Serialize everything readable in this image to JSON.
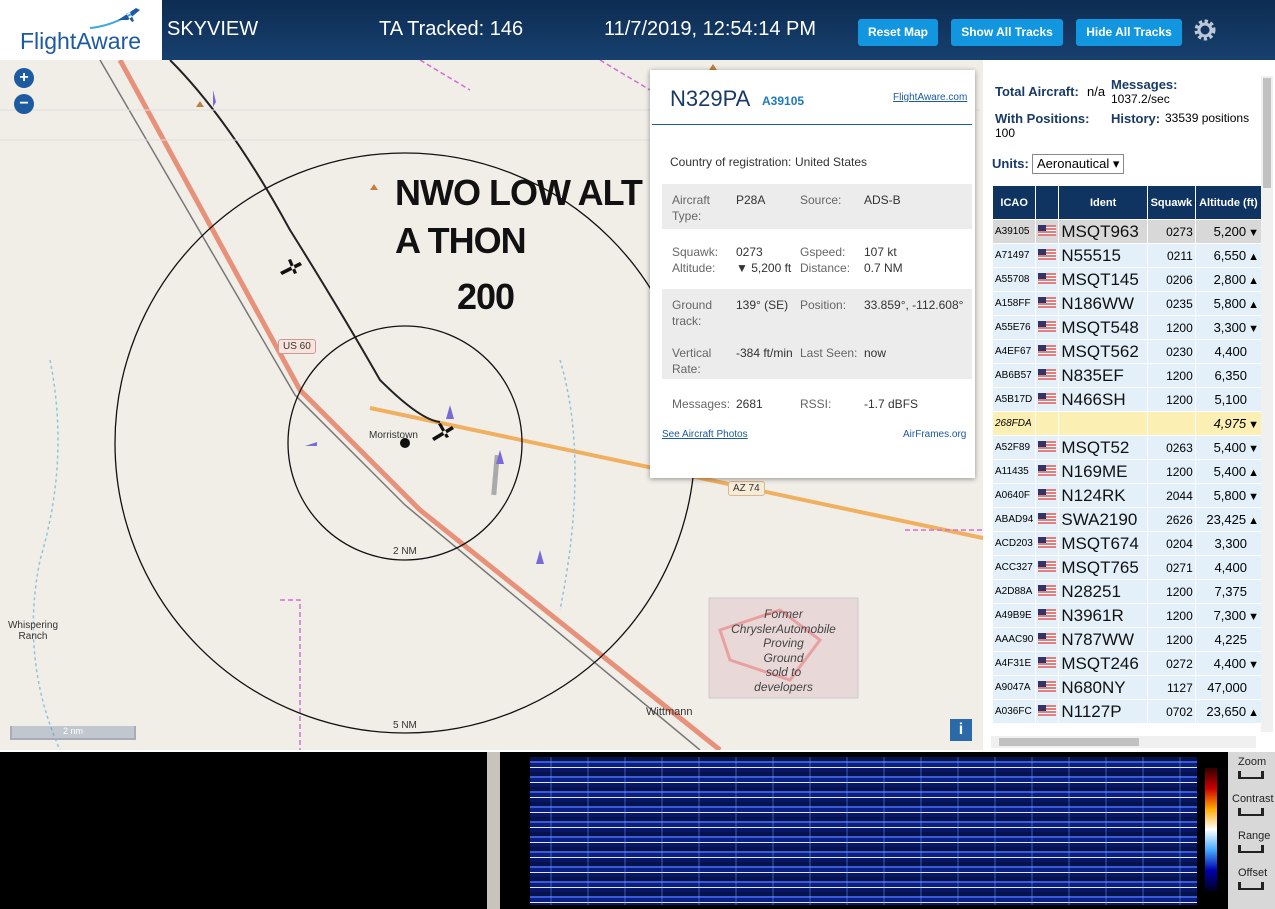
{
  "header": {
    "logo": "FlightAware",
    "app_name": "SKYVIEW",
    "tracked": "TA Tracked: 146",
    "datetime": "11/7/2019, 12:54:14 PM",
    "buttons": [
      "Reset Map",
      "Show All Tracks",
      "Hide All Tracks"
    ]
  },
  "map": {
    "zoom_in": "+",
    "zoom_out": "−",
    "overlay_lines": [
      "NWO LOW ALT",
      "A THON",
      "200"
    ],
    "labels": {
      "us60": "US 60",
      "town": "Morristown",
      "az74": "AZ 74",
      "ring_inner": "2 NM",
      "ring_outer": "5 NM",
      "whispering": "Whispering Ranch",
      "wittmann": "Wittmann",
      "scale": "2 nm",
      "info": "i"
    },
    "proving_ground": [
      "Former",
      "ChryslerAutomobile",
      "Proving",
      "Ground",
      "sold to",
      "developers"
    ]
  },
  "popup": {
    "ident": "N329PA",
    "icao": "A39105",
    "link": "FlightAware.com",
    "country_label": "Country of registration:",
    "country": "United States",
    "sections": [
      [
        [
          "Aircraft Type:",
          "P28A",
          "Source:",
          "ADS-B"
        ]
      ],
      [
        [
          "Squawk:",
          "0273",
          "Gspeed:",
          "107 kt"
        ],
        [
          "Altitude:",
          "▼ 5,200 ft",
          "Distance:",
          "0.7 NM"
        ]
      ],
      [
        [
          "Ground track:",
          "139° (SE)",
          "Position:",
          "33.859°, -112.608°"
        ],
        [
          "Vertical Rate:",
          "-384 ft/min",
          "Last Seen:",
          "now"
        ]
      ],
      [
        [
          "Messages:",
          "2681",
          "RSSI:",
          "-1.7 dBFS"
        ]
      ]
    ],
    "photos": "See Aircraft Photos",
    "airframes": "AirFrames.org"
  },
  "sidebar": {
    "total_label": "Total Aircraft:",
    "total": "n/a",
    "messages_label": "Messages:",
    "messages": "1037.2/sec",
    "positions_label": "With Positions:",
    "positions": "100",
    "history_label": "History:",
    "history": "33539 positions",
    "units_label": "Units:",
    "units": "Aeronautical",
    "table": {
      "headers": [
        "ICAO",
        "Ident",
        "Squawk",
        "Altitude (ft)"
      ],
      "rows": [
        {
          "icao": "A39105",
          "ident": "MSQT963",
          "squawk": "0273",
          "altitude": "5,200",
          "trend": "▼"
        },
        {
          "icao": "A71497",
          "ident": "N55515",
          "squawk": "0211",
          "altitude": "6,550",
          "trend": "▲"
        },
        {
          "icao": "A55708",
          "ident": "MSQT145",
          "squawk": "0206",
          "altitude": "2,800",
          "trend": "▲"
        },
        {
          "icao": "A158FF",
          "ident": "N186WW",
          "squawk": "0235",
          "altitude": "5,800",
          "trend": "▲"
        },
        {
          "icao": "A55E76",
          "ident": "MSQT548",
          "squawk": "1200",
          "altitude": "3,300",
          "trend": "▼"
        },
        {
          "icao": "A4EF67",
          "ident": "MSQT562",
          "squawk": "0230",
          "altitude": "4,400"
        },
        {
          "icao": "AB6B57",
          "ident": "N835EF",
          "squawk": "1200",
          "altitude": "6,350"
        },
        {
          "icao": "A5B17D",
          "ident": "N466SH",
          "squawk": "1200",
          "altitude": "5,100"
        },
        {
          "icao": "268FDA",
          "altitude": "4,975",
          "trend": "▼"
        },
        {
          "icao": "A52F89",
          "ident": "MSQT52",
          "squawk": "0263",
          "altitude": "5,400",
          "trend": "▼"
        },
        {
          "icao": "A11435",
          "ident": "N169ME",
          "squawk": "1200",
          "altitude": "5,400",
          "trend": "▲"
        },
        {
          "icao": "A0640F",
          "ident": "N124RK",
          "squawk": "2044",
          "altitude": "5,800",
          "trend": "▼"
        },
        {
          "icao": "ABAD94",
          "ident": "SWA2190",
          "squawk": "2626",
          "altitude": "23,425",
          "trend": "▲"
        },
        {
          "icao": "ACD203",
          "ident": "MSQT674",
          "squawk": "0204",
          "altitude": "3,300"
        },
        {
          "icao": "ACC327",
          "ident": "MSQT765",
          "squawk": "0271",
          "altitude": "4,400"
        },
        {
          "icao": "A2D88A",
          "ident": "N28251",
          "squawk": "1200",
          "altitude": "7,375"
        },
        {
          "icao": "A49B9E",
          "ident": "N3961R",
          "squawk": "1200",
          "altitude": "7,300",
          "trend": "▼"
        },
        {
          "icao": "AAAC90",
          "ident": "N787WW",
          "squawk": "1200",
          "altitude": "4,225"
        },
        {
          "icao": "A4F31E",
          "ident": "MSQT246",
          "squawk": "0272",
          "altitude": "4,400",
          "trend": "▼"
        },
        {
          "icao": "A9047A",
          "ident": "N680NY",
          "squawk": "1127",
          "altitude": "47,000"
        },
        {
          "icao": "A036FC",
          "ident": "N1127P",
          "squawk": "0702",
          "altitude": "23,650",
          "trend": "▲"
        }
      ]
    }
  },
  "spectrum": {
    "controls": [
      "Zoom",
      "Contrast",
      "Range",
      "Offset"
    ]
  }
}
